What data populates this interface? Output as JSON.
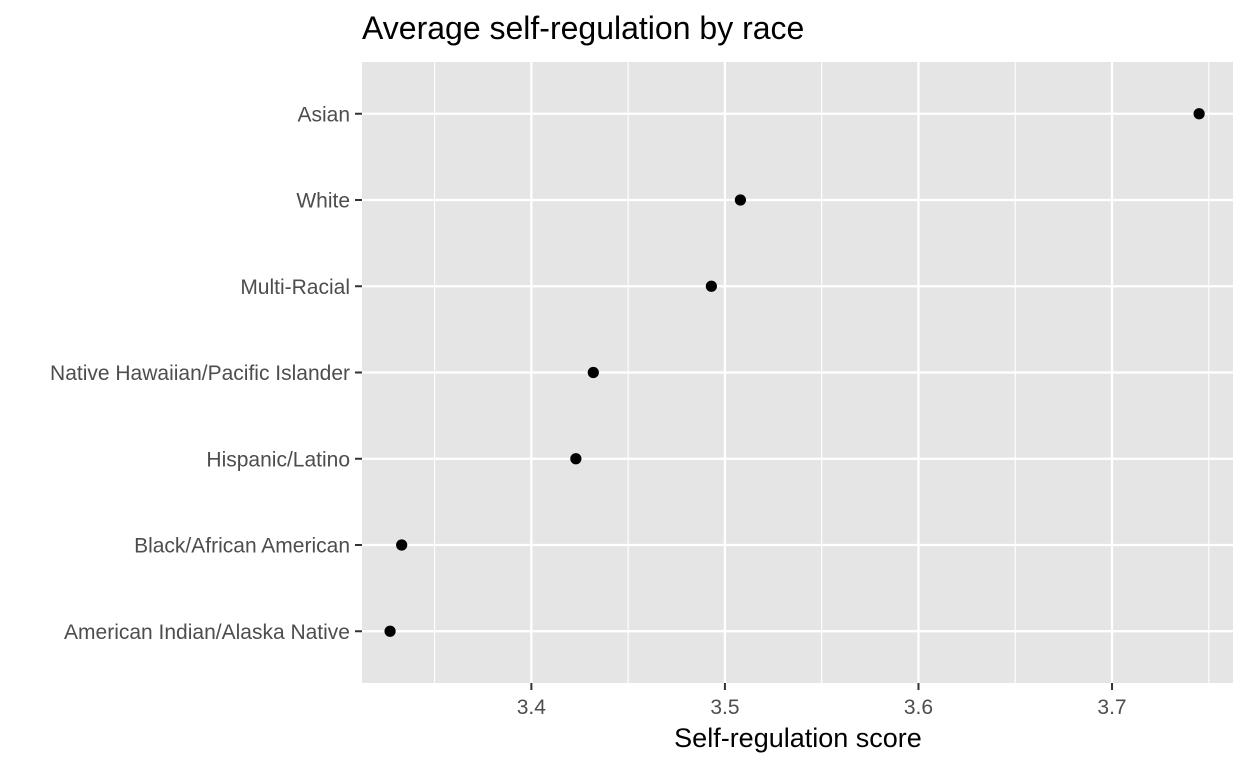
{
  "chart_data": {
    "type": "scatter",
    "title": "Average self-regulation by race",
    "xlabel": "Self-regulation score",
    "ylabel": "",
    "xlim": [
      3.3125,
      3.7625
    ],
    "x_ticks": [
      3.4,
      3.5,
      3.6,
      3.7
    ],
    "x_tick_labels": [
      "3.4",
      "3.5",
      "3.6",
      "3.7"
    ],
    "categories": [
      "American Indian/Alaska Native",
      "Black/African American",
      "Hispanic/Latino",
      "Native Hawaiian/Pacific Islander",
      "Multi-Racial",
      "White",
      "Asian"
    ],
    "values": [
      3.327,
      3.333,
      3.423,
      3.432,
      3.493,
      3.508,
      3.745
    ],
    "grid": true,
    "colors": {
      "panel": "#e5e5e5",
      "grid_major": "#ffffff",
      "point": "#000000",
      "tick": "#333333"
    }
  }
}
